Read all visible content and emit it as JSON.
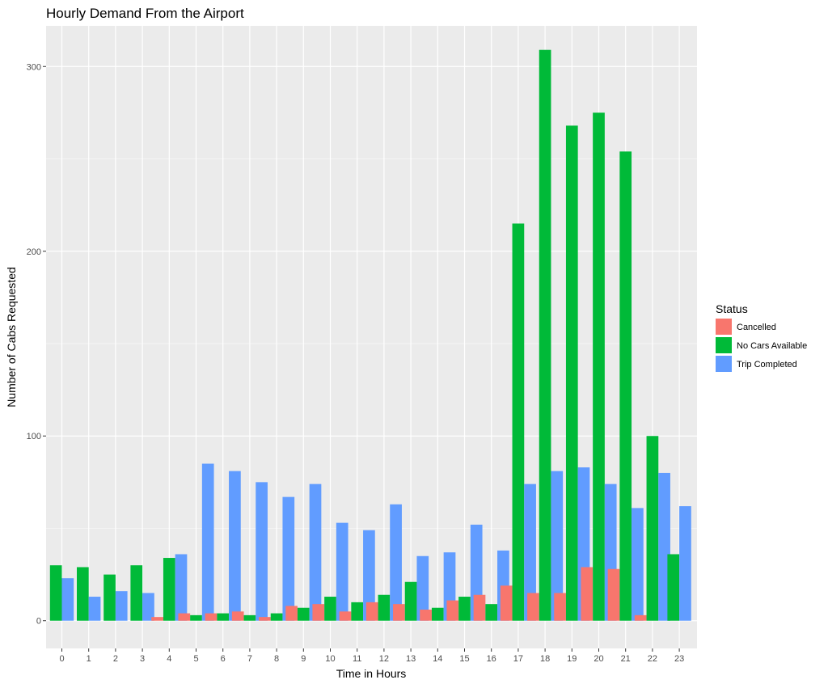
{
  "chart_data": {
    "type": "bar",
    "title": "Hourly Demand From the Airport",
    "xlabel": "Time in Hours",
    "ylabel": "Number of Cabs Requested",
    "categories": [
      "0",
      "1",
      "2",
      "3",
      "4",
      "5",
      "6",
      "7",
      "8",
      "9",
      "10",
      "11",
      "12",
      "13",
      "14",
      "15",
      "16",
      "17",
      "18",
      "19",
      "20",
      "21",
      "22",
      "23"
    ],
    "ylim": [
      -15,
      322
    ],
    "yticks": [
      0,
      100,
      200,
      300
    ],
    "grid": true,
    "legend": {
      "title": "Status",
      "placement": "right"
    },
    "series": [
      {
        "name": "Cancelled",
        "color": "#F8766D",
        "values": [
          null,
          null,
          null,
          null,
          2,
          4,
          4,
          5,
          2,
          8,
          9,
          5,
          10,
          9,
          6,
          11,
          14,
          19,
          15,
          15,
          29,
          28,
          3,
          null
        ]
      },
      {
        "name": "No Cars Available",
        "color": "#00BA38",
        "values": [
          30,
          29,
          25,
          30,
          34,
          3,
          4,
          3,
          4,
          7,
          13,
          10,
          14,
          21,
          7,
          13,
          9,
          215,
          309,
          268,
          275,
          254,
          100,
          36
        ]
      },
      {
        "name": "Trip Completed",
        "color": "#619CFF",
        "values": [
          23,
          13,
          16,
          15,
          36,
          85,
          81,
          75,
          67,
          74,
          53,
          49,
          63,
          35,
          37,
          52,
          38,
          74,
          81,
          83,
          74,
          61,
          80,
          62
        ]
      }
    ]
  }
}
